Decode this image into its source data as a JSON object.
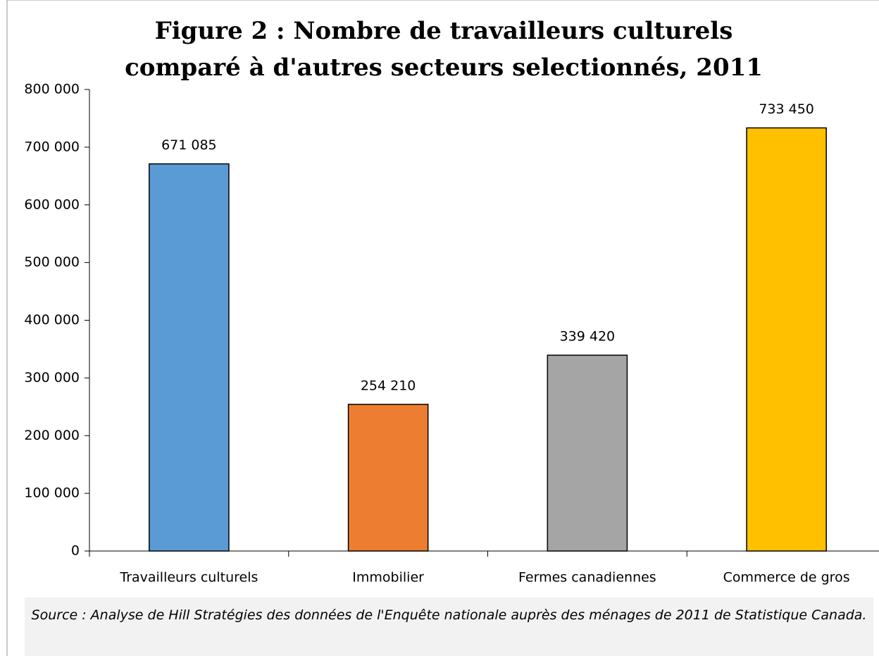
{
  "chart_data": {
    "type": "bar",
    "title": "Figure 2 : Nombre de travailleurs culturels comparé à d'autres secteurs selectionnés, 2011",
    "categories": [
      "Travailleurs culturels",
      "Immobilier",
      "Fermes canadiennes",
      "Commerce de gros"
    ],
    "values": [
      671085,
      254210,
      339420,
      733450
    ],
    "value_labels": [
      "671 085",
      "254 210",
      "339 420",
      "733 450"
    ],
    "colors": [
      "#5b9bd5",
      "#ed7d31",
      "#a5a5a5",
      "#ffc000"
    ],
    "ylim": [
      0,
      800000
    ],
    "yticks": [
      0,
      {
        "value": 100000,
        "label": "100 000"
      },
      {
        "value": 200000,
        "label": "200 000"
      },
      {
        "value": 300000,
        "label": "300 000"
      },
      {
        "value": 400000,
        "label": "400 000"
      },
      {
        "value": 500000,
        "label": "500 000"
      },
      {
        "value": 600000,
        "label": "600 000"
      },
      {
        "value": 700000,
        "label": "700 000"
      },
      {
        "value": 800000,
        "label": "800 000"
      }
    ],
    "grid": false,
    "source": "Source : Analyse de Hill Stratégies des données de l'Enquête nationale auprès des ménages de 2011 de Statistique Canada."
  }
}
